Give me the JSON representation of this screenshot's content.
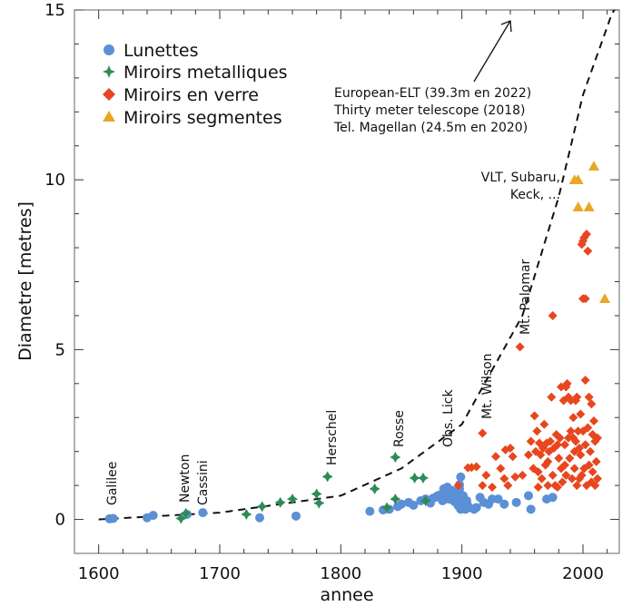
{
  "chart_data": {
    "type": "scatter",
    "title": "",
    "xlabel": "annee",
    "ylabel": "Diametre [metres]",
    "xlim": [
      1580,
      2030
    ],
    "ylim": [
      -1,
      15
    ],
    "xticks": [
      1600,
      1700,
      1800,
      1900,
      2000
    ],
    "yticks": [
      0,
      5,
      10,
      15
    ],
    "grid": false,
    "legend_position": "top-left",
    "series": [
      {
        "name": "Lunettes",
        "marker": "circle",
        "color": "#5b8fd6",
        "points": [
          [
            1609,
            0.02
          ],
          [
            1612,
            0.03
          ],
          [
            1640,
            0.05
          ],
          [
            1645,
            0.12
          ],
          [
            1673,
            0.15
          ],
          [
            1686,
            0.2
          ],
          [
            1733,
            0.05
          ],
          [
            1763,
            0.1
          ],
          [
            1824,
            0.24
          ],
          [
            1835,
            0.28
          ],
          [
            1840,
            0.3
          ],
          [
            1847,
            0.38
          ],
          [
            1850,
            0.45
          ],
          [
            1856,
            0.5
          ],
          [
            1860,
            0.42
          ],
          [
            1866,
            0.55
          ],
          [
            1870,
            0.6
          ],
          [
            1874,
            0.48
          ],
          [
            1876,
            0.62
          ],
          [
            1878,
            0.65
          ],
          [
            1880,
            0.7
          ],
          [
            1882,
            0.72
          ],
          [
            1884,
            0.55
          ],
          [
            1885,
            0.9
          ],
          [
            1886,
            0.75
          ],
          [
            1887,
            0.68
          ],
          [
            1888,
            0.95
          ],
          [
            1889,
            0.6
          ],
          [
            1890,
            0.8
          ],
          [
            1891,
            0.72
          ],
          [
            1892,
            0.85
          ],
          [
            1893,
            0.55
          ],
          [
            1894,
            0.65
          ],
          [
            1895,
            0.5
          ],
          [
            1896,
            0.75
          ],
          [
            1897,
            0.4
          ],
          [
            1898,
            0.9
          ],
          [
            1899,
            0.3
          ],
          [
            1900,
            0.6
          ],
          [
            1901,
            0.7
          ],
          [
            1902,
            0.45
          ],
          [
            1903,
            0.3
          ],
          [
            1904,
            0.55
          ],
          [
            1905,
            0.4
          ],
          [
            1906,
            0.35
          ],
          [
            1910,
            0.3
          ],
          [
            1912,
            0.35
          ],
          [
            1915,
            0.65
          ],
          [
            1918,
            0.5
          ],
          [
            1922,
            0.45
          ],
          [
            1925,
            0.6
          ],
          [
            1930,
            0.6
          ],
          [
            1935,
            0.45
          ],
          [
            1945,
            0.5
          ],
          [
            1955,
            0.7
          ],
          [
            1957,
            0.3
          ],
          [
            1970,
            0.6
          ],
          [
            1975,
            0.65
          ],
          [
            1898,
            1.02
          ],
          [
            1899,
            1.25
          ]
        ]
      },
      {
        "name": "Miroirs metalliques",
        "marker": "star",
        "color": "#2e8b57",
        "points": [
          [
            1668,
            0.03
          ],
          [
            1672,
            0.18
          ],
          [
            1722,
            0.15
          ],
          [
            1735,
            0.38
          ],
          [
            1750,
            0.5
          ],
          [
            1760,
            0.6
          ],
          [
            1780,
            0.75
          ],
          [
            1782,
            0.48
          ],
          [
            1789,
            1.26
          ],
          [
            1828,
            0.9
          ],
          [
            1845,
            1.83
          ],
          [
            1845,
            0.6
          ],
          [
            1838,
            0.35
          ],
          [
            1861,
            1.22
          ],
          [
            1868,
            1.22
          ],
          [
            1870,
            0.55
          ]
        ]
      },
      {
        "name": "Miroirs en verre",
        "marker": "diamond",
        "color": "#e8461e",
        "points": [
          [
            1897,
            1.0
          ],
          [
            1905,
            1.52
          ],
          [
            1908,
            1.53
          ],
          [
            1912,
            1.55
          ],
          [
            1917,
            2.54
          ],
          [
            1917,
            1.0
          ],
          [
            1920,
            1.3
          ],
          [
            1925,
            0.95
          ],
          [
            1928,
            1.85
          ],
          [
            1932,
            1.5
          ],
          [
            1935,
            1.2
          ],
          [
            1936,
            2.05
          ],
          [
            1938,
            1.0
          ],
          [
            1940,
            2.1
          ],
          [
            1942,
            1.85
          ],
          [
            1944,
            1.25
          ],
          [
            1948,
            5.08
          ],
          [
            1950,
            1.3
          ],
          [
            1955,
            1.9
          ],
          [
            1957,
            2.3
          ],
          [
            1959,
            1.5
          ],
          [
            1960,
            3.05
          ],
          [
            1961,
            2.0
          ],
          [
            1962,
            2.6
          ],
          [
            1963,
            1.4
          ],
          [
            1964,
            2.25
          ],
          [
            1965,
            1.9
          ],
          [
            1966,
            1.2
          ],
          [
            1967,
            2.1
          ],
          [
            1968,
            2.8
          ],
          [
            1969,
            1.6
          ],
          [
            1970,
            2.25
          ],
          [
            1971,
            1.7
          ],
          [
            1972,
            2.0
          ],
          [
            1973,
            2.3
          ],
          [
            1974,
            3.6
          ],
          [
            1975,
            6.0
          ],
          [
            1975,
            1.3
          ],
          [
            1976,
            2.1
          ],
          [
            1977,
            1.0
          ],
          [
            1978,
            2.5
          ],
          [
            1979,
            2.2
          ],
          [
            1980,
            1.8
          ],
          [
            1981,
            2.4
          ],
          [
            1982,
            1.5
          ],
          [
            1983,
            1.1
          ],
          [
            1984,
            3.5
          ],
          [
            1985,
            2.2
          ],
          [
            1986,
            3.9
          ],
          [
            1986,
            1.3
          ],
          [
            1987,
            4.0
          ],
          [
            1988,
            3.6
          ],
          [
            1988,
            2.4
          ],
          [
            1989,
            1.8
          ],
          [
            1990,
            3.5
          ],
          [
            1990,
            2.6
          ],
          [
            1991,
            1.2
          ],
          [
            1992,
            2.4
          ],
          [
            1992,
            3.0
          ],
          [
            1993,
            1.5
          ],
          [
            1993,
            2.0
          ],
          [
            1994,
            3.5
          ],
          [
            1994,
            2.3
          ],
          [
            1995,
            1.0
          ],
          [
            1995,
            3.6
          ],
          [
            1996,
            2.6
          ],
          [
            1997,
            1.2
          ],
          [
            1997,
            2.1
          ],
          [
            1998,
            1.9
          ],
          [
            1998,
            3.1
          ],
          [
            1999,
            8.1
          ],
          [
            1999,
            1.3
          ],
          [
            2000,
            8.2
          ],
          [
            2000,
            2.6
          ],
          [
            2000,
            6.5
          ],
          [
            2001,
            1.5
          ],
          [
            2001,
            8.3
          ],
          [
            2002,
            4.1
          ],
          [
            2002,
            6.5
          ],
          [
            2002,
            2.2
          ],
          [
            2003,
            8.4
          ],
          [
            2003,
            1.0
          ],
          [
            2004,
            7.9
          ],
          [
            2004,
            2.7
          ],
          [
            2005,
            3.6
          ],
          [
            2005,
            1.6
          ],
          [
            2006,
            2.0
          ],
          [
            2007,
            3.4
          ],
          [
            2007,
            1.1
          ],
          [
            2008,
            2.5
          ],
          [
            2008,
            1.4
          ],
          [
            2009,
            2.9
          ],
          [
            2010,
            1.0
          ],
          [
            2010,
            2.3
          ],
          [
            2011,
            1.7
          ],
          [
            2012,
            2.4
          ],
          [
            2012,
            1.2
          ],
          [
            1982,
            3.9
          ],
          [
            1985,
            1.6
          ],
          [
            1979,
            0.95
          ],
          [
            1971,
            1.0
          ],
          [
            1963,
            0.95
          ]
        ]
      },
      {
        "name": "Miroirs segmentes",
        "marker": "triangle",
        "color": "#e8a823",
        "points": [
          [
            1993,
            10.0
          ],
          [
            1996,
            10.0
          ],
          [
            1996,
            9.2
          ],
          [
            2005,
            9.2
          ],
          [
            2009,
            10.4
          ],
          [
            2018,
            6.5
          ]
        ]
      }
    ],
    "trend_curve": {
      "style": "dashed",
      "description_points": [
        [
          1600,
          0.0
        ],
        [
          1700,
          0.2
        ],
        [
          1800,
          0.7
        ],
        [
          1850,
          1.5
        ],
        [
          1900,
          2.8
        ],
        [
          1950,
          6.0
        ],
        [
          1980,
          9.5
        ],
        [
          2000,
          12.5
        ],
        [
          2025,
          15.0
        ]
      ]
    },
    "annotations": {
      "rotated": [
        "Galilee",
        "Newton",
        "Cassini",
        "Herschel",
        "Rosse",
        "Obs. Lick",
        "Mt. Wilson",
        "Mt. Palomar"
      ],
      "block_upper": [
        "European-ELT (39.3m en 2022)",
        "Thirty meter telescope (2018)",
        "Tel. Magellan (24.5m en 2020)"
      ],
      "block_lower": [
        "VLT, Subaru,",
        "Keck, ..."
      ]
    }
  }
}
